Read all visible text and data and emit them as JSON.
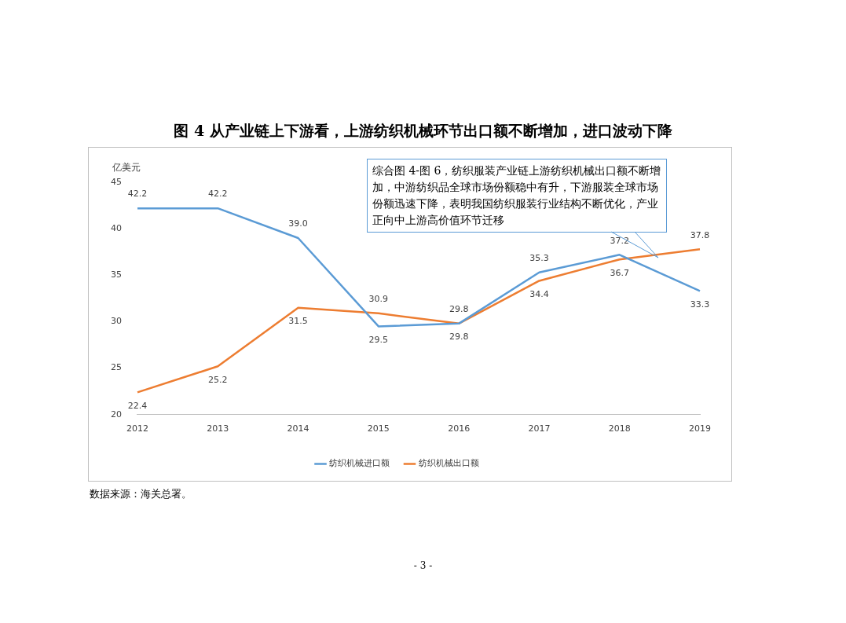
{
  "chart_data": {
    "type": "line",
    "title": "图 4  从产业链上下游看，上游纺织机械环节出口额不断增加，进口波动下降",
    "ylabel": "亿美元",
    "categories": [
      "2012",
      "2013",
      "2014",
      "2015",
      "2016",
      "2017",
      "2018",
      "2019"
    ],
    "series": [
      {
        "name": "纺织机械进口额",
        "color": "#5b9bd5",
        "values": [
          42.2,
          42.2,
          39.0,
          29.5,
          29.8,
          35.3,
          37.2,
          33.3
        ],
        "value_labels": [
          "42.2",
          "42.2",
          "39.0",
          "29.5",
          "29.8",
          "35.3",
          "37.2",
          "33.3"
        ]
      },
      {
        "name": "纺织机械出口额",
        "color": "#ed7d31",
        "values": [
          22.4,
          25.2,
          31.5,
          30.9,
          29.8,
          34.4,
          36.7,
          37.8
        ],
        "value_labels": [
          "22.4",
          "25.2",
          "31.5",
          "30.9",
          "29.8",
          "34.4",
          "36.7",
          "37.8"
        ]
      }
    ],
    "ylim": [
      20,
      45
    ],
    "yticks": [
      20,
      25,
      30,
      35,
      40,
      45
    ],
    "grid": false,
    "legend": "bottom",
    "marker": "none",
    "line_style": "solid",
    "annotations": [
      "综合图 4-图 6，纺织服装产业链上游纺织机械出口额不断增加，中游纺织品全球市场份额稳中有升，下游服装全球市场份额迅速下降，表明我国纺织服装行业结构不断优化，产业正向中上游高价值环节迁移",
      "数据来源：海关总署。",
      "- 3 -"
    ]
  }
}
